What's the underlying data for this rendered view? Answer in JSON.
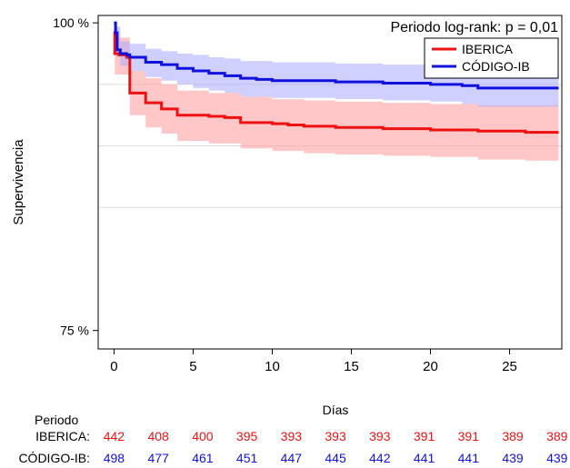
{
  "chart_data": {
    "type": "line",
    "subtype": "kaplan-meier survival with confidence bands",
    "xlabel": "Días",
    "ylabel": "Supervivencia",
    "xlim": [
      -1,
      28.3
    ],
    "ylim": [
      0.735,
      1.006
    ],
    "x_ticks": [
      0,
      5,
      10,
      15,
      20,
      25
    ],
    "y_ticks": [
      {
        "value": 1.0,
        "label": "100 %"
      },
      {
        "value": 0.75,
        "label": "75 %"
      }
    ],
    "gridlines_y": [
      0.95,
      0.9,
      0.85
    ],
    "annotation": "Periodo log-rank: p = 0,01",
    "legend_position": "top-right",
    "series": [
      {
        "name": "IBERICA",
        "color": "#ee1111",
        "band_color": "#ff9999",
        "steps": [
          [
            0,
            0.993
          ],
          [
            0.05,
            0.975
          ],
          [
            0.3,
            0.974
          ],
          [
            0.8,
            0.972
          ],
          [
            1,
            0.943
          ],
          [
            2,
            0.935
          ],
          [
            3,
            0.93
          ],
          [
            4,
            0.925
          ],
          [
            6,
            0.924
          ],
          [
            7,
            0.923
          ],
          [
            8,
            0.919
          ],
          [
            10,
            0.918
          ],
          [
            11,
            0.917
          ],
          [
            12,
            0.916
          ],
          [
            14,
            0.915
          ],
          [
            16,
            0.915
          ],
          [
            17,
            0.914
          ],
          [
            19,
            0.914
          ],
          [
            20,
            0.913
          ],
          [
            23,
            0.912
          ],
          [
            26,
            0.911
          ],
          [
            28.1,
            0.911
          ]
        ],
        "lower": [
          [
            0,
            0.985
          ],
          [
            0.05,
            0.958
          ],
          [
            1,
            0.925
          ],
          [
            2,
            0.915
          ],
          [
            3,
            0.91
          ],
          [
            4,
            0.904
          ],
          [
            6,
            0.902
          ],
          [
            8,
            0.898
          ],
          [
            10,
            0.896
          ],
          [
            12,
            0.894
          ],
          [
            14,
            0.893
          ],
          [
            17,
            0.892
          ],
          [
            20,
            0.891
          ],
          [
            23,
            0.889
          ],
          [
            26,
            0.888
          ],
          [
            28.1,
            0.888
          ]
        ],
        "upper": [
          [
            0,
            1.0
          ],
          [
            0.05,
            0.988
          ],
          [
            1,
            0.961
          ],
          [
            2,
            0.955
          ],
          [
            3,
            0.95
          ],
          [
            4,
            0.945
          ],
          [
            6,
            0.943
          ],
          [
            8,
            0.94
          ],
          [
            10,
            0.938
          ],
          [
            12,
            0.937
          ],
          [
            14,
            0.936
          ],
          [
            17,
            0.935
          ],
          [
            20,
            0.934
          ],
          [
            23,
            0.933
          ],
          [
            26,
            0.933
          ],
          [
            28.1,
            0.933
          ]
        ]
      },
      {
        "name": "CÓDIGO-IB",
        "color": "#1111dd",
        "band_color": "#aaaaff",
        "steps": [
          [
            0,
            1.0
          ],
          [
            0.1,
            0.992
          ],
          [
            0.2,
            0.978
          ],
          [
            0.4,
            0.975
          ],
          [
            0.8,
            0.974
          ],
          [
            1,
            0.972
          ],
          [
            2,
            0.968
          ],
          [
            3,
            0.966
          ],
          [
            4,
            0.963
          ],
          [
            5,
            0.961
          ],
          [
            6,
            0.959
          ],
          [
            7,
            0.957
          ],
          [
            8,
            0.955
          ],
          [
            9,
            0.954
          ],
          [
            10,
            0.953
          ],
          [
            14,
            0.952
          ],
          [
            17,
            0.951
          ],
          [
            20,
            0.95
          ],
          [
            22,
            0.949
          ],
          [
            23,
            0.947
          ],
          [
            28.1,
            0.947
          ]
        ],
        "lower": [
          [
            0,
            0.995
          ],
          [
            0.1,
            0.975
          ],
          [
            0.4,
            0.965
          ],
          [
            1,
            0.961
          ],
          [
            2,
            0.956
          ],
          [
            3,
            0.953
          ],
          [
            4,
            0.95
          ],
          [
            5,
            0.947
          ],
          [
            6,
            0.945
          ],
          [
            7,
            0.943
          ],
          [
            8,
            0.94
          ],
          [
            10,
            0.939
          ],
          [
            14,
            0.938
          ],
          [
            17,
            0.937
          ],
          [
            20,
            0.936
          ],
          [
            22,
            0.934
          ],
          [
            23,
            0.932
          ],
          [
            28.1,
            0.932
          ]
        ],
        "upper": [
          [
            0,
            1.0
          ],
          [
            0.1,
            0.997
          ],
          [
            0.4,
            0.985
          ],
          [
            1,
            0.983
          ],
          [
            2,
            0.979
          ],
          [
            3,
            0.977
          ],
          [
            4,
            0.975
          ],
          [
            5,
            0.974
          ],
          [
            6,
            0.972
          ],
          [
            7,
            0.971
          ],
          [
            8,
            0.969
          ],
          [
            10,
            0.968
          ],
          [
            14,
            0.967
          ],
          [
            17,
            0.966
          ],
          [
            20,
            0.965
          ],
          [
            22,
            0.964
          ],
          [
            23,
            0.962
          ],
          [
            28.1,
            0.962
          ]
        ]
      }
    ]
  },
  "risk_table": {
    "header": "Periodo",
    "times": [
      0,
      2.8,
      5.6,
      8.4,
      11.2,
      14,
      16.8,
      19.6,
      22.4,
      25.2,
      28
    ],
    "rows": [
      {
        "label": "IBERICA:",
        "color": "#ee1111",
        "values": [
          "442",
          "408",
          "400",
          "395",
          "393",
          "393",
          "393",
          "391",
          "391",
          "389",
          "389"
        ]
      },
      {
        "label": "CÓDIGO-IB:",
        "color": "#1111dd",
        "values": [
          "498",
          "477",
          "461",
          "451",
          "447",
          "445",
          "442",
          "441",
          "441",
          "439",
          "439"
        ]
      }
    ]
  }
}
